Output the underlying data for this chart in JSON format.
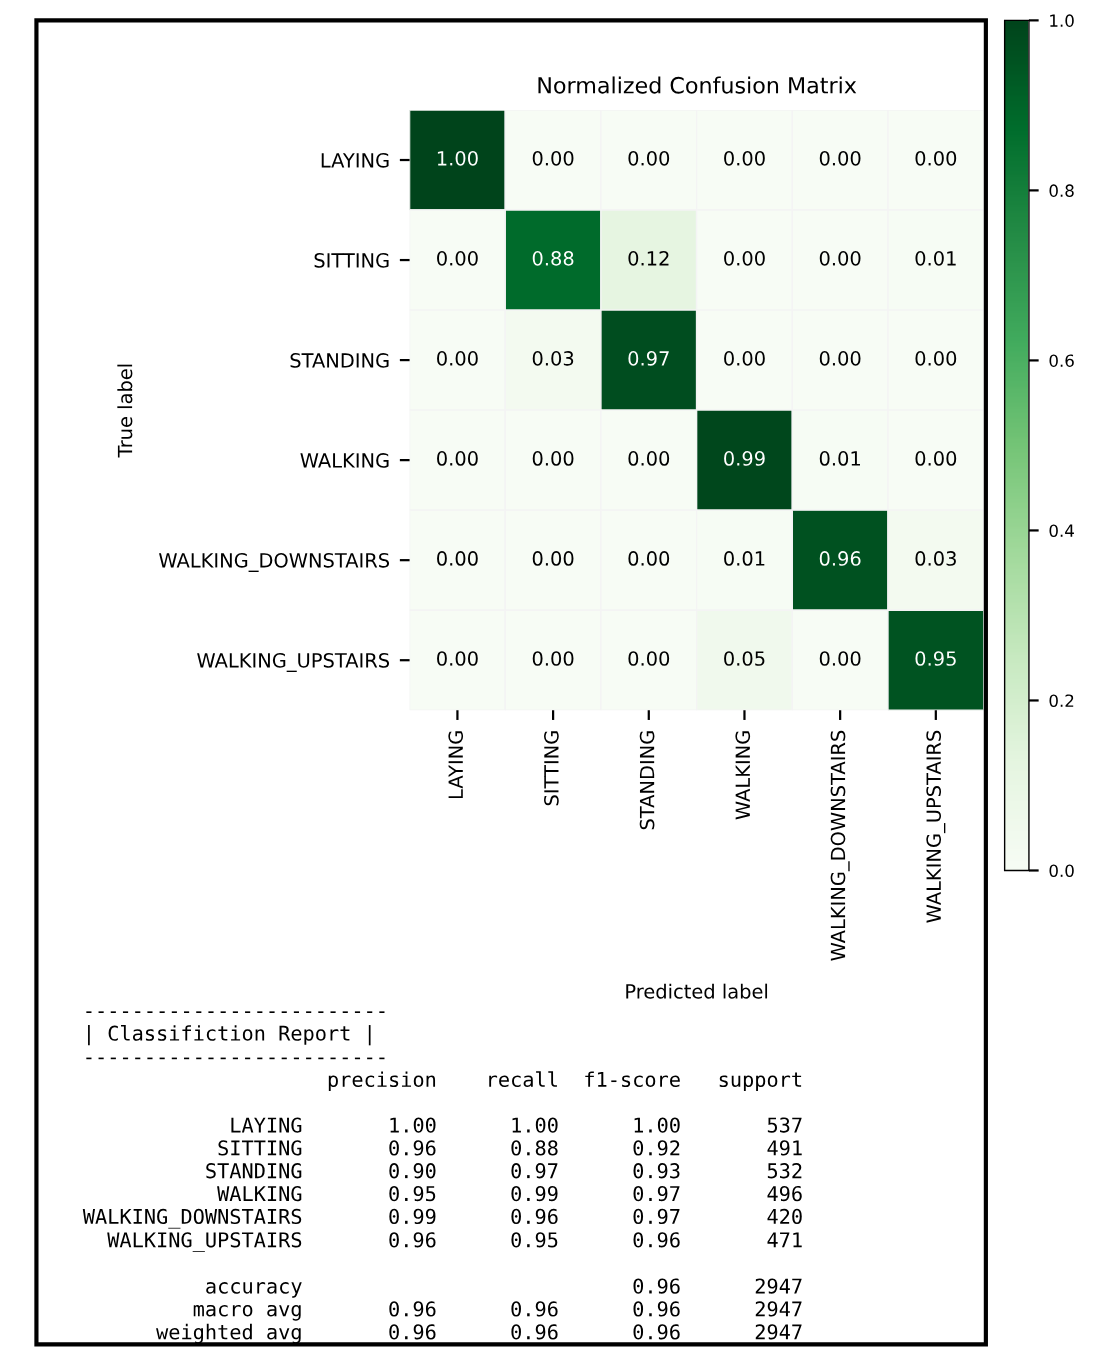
{
  "chart_data": {
    "type": "heatmap",
    "title": "Normalized Confusion Matrix",
    "xlabel": "Predicted label",
    "ylabel": "True label",
    "categories": [
      "LAYING",
      "SITTING",
      "STANDING",
      "WALKING",
      "WALKING_DOWNSTAIRS",
      "WALKING_UPSTAIRS"
    ],
    "y_categories": [
      "LAYING",
      "SITTING",
      "STANDING",
      "WALKING",
      "WALKING_DOWNSTAIRS",
      "WALKING_UPSTAIRS"
    ],
    "cells": [
      [
        1.0,
        0.0,
        0.0,
        0.0,
        0.0,
        0.0
      ],
      [
        0.0,
        0.88,
        0.12,
        0.0,
        0.0,
        0.01
      ],
      [
        0.0,
        0.03,
        0.97,
        0.0,
        0.0,
        0.0
      ],
      [
        0.0,
        0.0,
        0.0,
        0.99,
        0.01,
        0.0
      ],
      [
        0.0,
        0.0,
        0.0,
        0.01,
        0.96,
        0.03
      ],
      [
        0.0,
        0.0,
        0.0,
        0.05,
        0.0,
        0.95
      ]
    ],
    "cell_labels": [
      [
        "1.00",
        "0.00",
        "0.00",
        "0.00",
        "0.00",
        "0.00"
      ],
      [
        "0.00",
        "0.88",
        "0.12",
        "0.00",
        "0.00",
        "0.01"
      ],
      [
        "0.00",
        "0.03",
        "0.97",
        "0.00",
        "0.00",
        "0.00"
      ],
      [
        "0.00",
        "0.00",
        "0.00",
        "0.99",
        "0.01",
        "0.00"
      ],
      [
        "0.00",
        "0.00",
        "0.00",
        "0.01",
        "0.96",
        "0.03"
      ],
      [
        "0.00",
        "0.00",
        "0.00",
        "0.05",
        "0.00",
        "0.95"
      ]
    ],
    "clim": [
      0,
      1
    ],
    "cticks": [
      {
        "value": 0,
        "label": "0.0"
      },
      {
        "value": 0.2,
        "label": "0.2"
      },
      {
        "value": 0.4,
        "label": "0.4"
      },
      {
        "value": 0.6,
        "label": "0.6"
      },
      {
        "value": 0.8,
        "label": "0.8"
      },
      {
        "value": 1,
        "label": "1.0"
      }
    ],
    "annotations": [
      "-------------------------\n| Classifiction Report |\n-------------------------\n                    precision    recall  f1-score   support\n\n            LAYING       1.00      1.00      1.00       537\n           SITTING       0.96      0.88      0.92       491\n          STANDING       0.90      0.97      0.93       532\n           WALKING       0.95      0.99      0.97       496\nWALKING_DOWNSTAIRS       0.99      0.96      0.97       420\n  WALKING_UPSTAIRS       0.96      0.95      0.96       471\n\n          accuracy                           0.96      2947\n         macro avg       0.96      0.96      0.96      2947\n      weighted avg       0.96      0.96      0.96      2947"
    ]
  }
}
